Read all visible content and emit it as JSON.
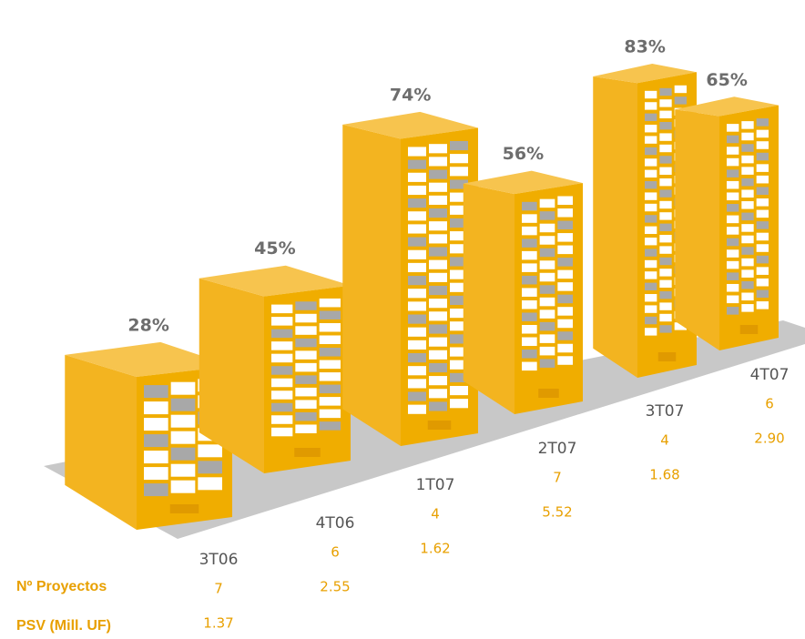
{
  "chart_data": {
    "type": "bar",
    "categories": [
      "3T06",
      "4T06",
      "1T07",
      "2T07",
      "3T07",
      "4T07"
    ],
    "values": [
      28,
      45,
      74,
      56,
      83,
      65
    ],
    "value_labels": [
      "28%",
      "45%",
      "74%",
      "56%",
      "83%",
      "65%"
    ],
    "color": "#f0ad00",
    "rows": [
      {
        "name": "Nº Proyectos",
        "values": [
          7,
          6,
          4,
          7,
          4,
          6
        ]
      },
      {
        "name": "PSV (Mill. UF)",
        "values": [
          1.37,
          2.55,
          1.62,
          5.52,
          1.68,
          2.9
        ],
        "value_labels": [
          "1.37",
          "2.55",
          "1.62",
          "5.52",
          "1.68",
          "2.90"
        ]
      }
    ]
  }
}
